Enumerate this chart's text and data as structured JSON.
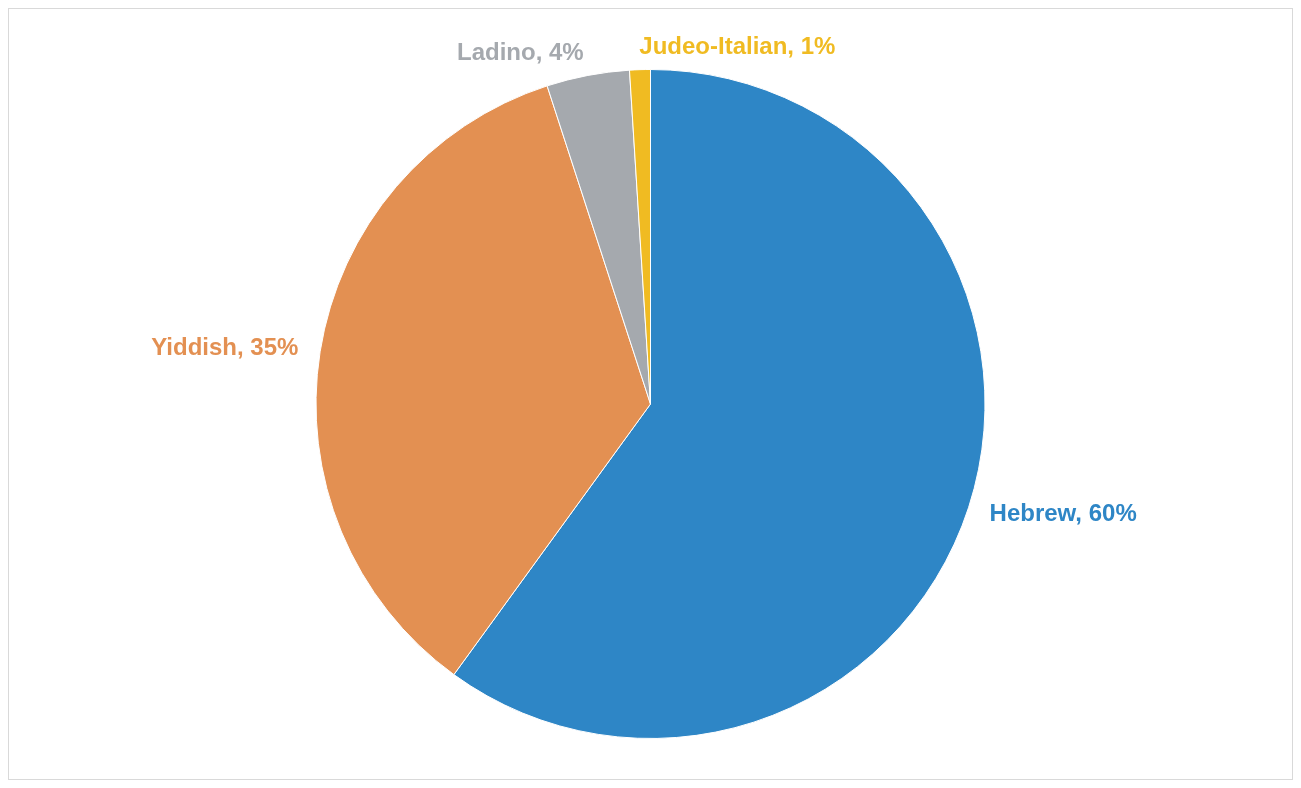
{
  "chart_data": {
    "type": "pie",
    "categories": [
      "Hebrew",
      "Yiddish",
      "Ladino",
      "Judeo-Italian"
    ],
    "values": [
      60,
      35,
      4,
      1
    ],
    "value_labels": [
      "60%",
      "35%",
      "4%",
      "1%"
    ],
    "colors": [
      "#2e86c6",
      "#e39052",
      "#a5a9ae",
      "#f0bb22"
    ],
    "legend": false
  }
}
